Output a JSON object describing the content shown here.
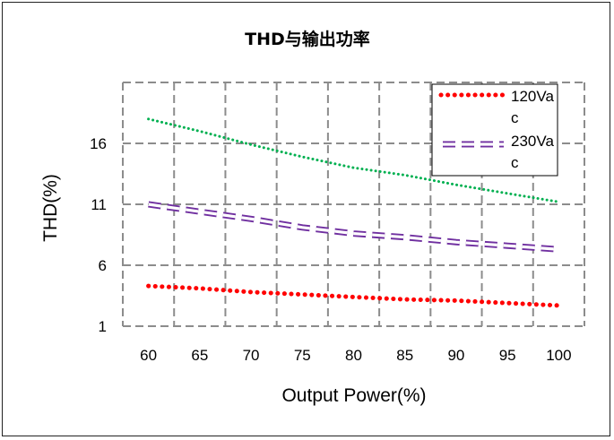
{
  "chart_data": {
    "type": "line",
    "title": "THD与输出功率",
    "xlabel": "Output Power(%)",
    "ylabel": "THD(%)",
    "x": [
      60,
      65,
      70,
      75,
      80,
      85,
      90,
      95,
      100
    ],
    "xlim": [
      57.5,
      102.5
    ],
    "ylim": [
      1,
      21
    ],
    "yticks": [
      1,
      6,
      11,
      16
    ],
    "xticks": [
      60,
      65,
      70,
      75,
      80,
      85,
      90,
      95,
      100
    ],
    "grid": true,
    "legend_position": "top-right",
    "series": [
      {
        "name": "120Vac",
        "name_lines": [
          "120Va",
          "c"
        ],
        "color": "#ff0000",
        "style": "dotted-heavy",
        "in_legend": true,
        "values": [
          4.3,
          4.1,
          3.8,
          3.6,
          3.4,
          3.2,
          3.1,
          2.9,
          2.7
        ]
      },
      {
        "name": "230Vac",
        "name_lines": [
          "230Va",
          "c"
        ],
        "color": "#7030a0",
        "style": "dashed",
        "in_legend": true,
        "values": [
          11.0,
          10.4,
          9.8,
          9.1,
          8.6,
          8.3,
          7.9,
          7.6,
          7.3
        ]
      },
      {
        "name": "",
        "color": "#00b050",
        "style": "dotted",
        "in_legend": false,
        "values": [
          18.0,
          17.0,
          15.9,
          14.9,
          14.0,
          13.4,
          12.6,
          11.9,
          11.2
        ]
      }
    ]
  }
}
